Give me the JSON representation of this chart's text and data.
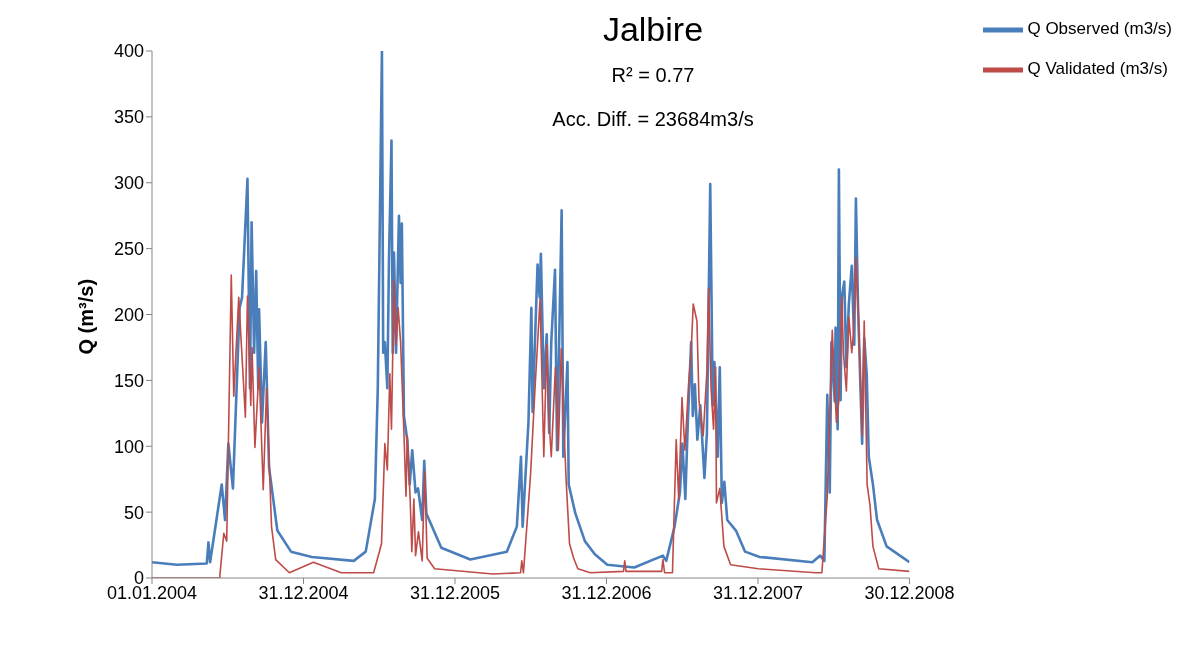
{
  "chart_data": {
    "type": "line",
    "title": "Jalbire",
    "ylabel": "Q (m³/s)",
    "annotations": [
      "R² = 0.77",
      "Acc. Diff. = 23684m3/s"
    ],
    "xlim": [
      "2004-01-01",
      "2008-12-30"
    ],
    "xticks": [
      {
        "value": "2004-01-01",
        "label": "01.01.2004"
      },
      {
        "value": "2004-12-31",
        "label": "31.12.2004"
      },
      {
        "value": "2005-12-31",
        "label": "31.12.2005"
      },
      {
        "value": "2006-12-31",
        "label": "31.12.2006"
      },
      {
        "value": "2007-12-31",
        "label": "31.12.2007"
      },
      {
        "value": "2008-12-30",
        "label": "30.12.2008"
      }
    ],
    "ylim": [
      0,
      400
    ],
    "yticks": [
      0,
      50,
      100,
      150,
      200,
      250,
      300,
      350,
      400
    ],
    "legend": "top right",
    "marker": "none",
    "line_style": "solid",
    "series": [
      {
        "name": "Q Observed (m3/s)",
        "color": "#4a7ebb",
        "x": [
          "2004-01-01",
          "2004-03-01",
          "2004-05-12",
          "2004-05-16",
          "2004-05-20",
          "2004-06-17",
          "2004-06-25",
          "2004-07-03",
          "2004-07-14",
          "2004-07-30",
          "2004-08-05",
          "2004-08-18",
          "2004-08-24",
          "2004-08-28",
          "2004-09-03",
          "2004-09-08",
          "2004-09-13",
          "2004-09-15",
          "2004-09-22",
          "2004-10-01",
          "2004-10-09",
          "2004-10-29",
          "2004-12-01",
          "2005-01-20",
          "2005-05-01",
          "2005-05-30",
          "2005-06-21",
          "2005-06-28",
          "2005-07-08",
          "2005-07-11",
          "2005-07-15",
          "2005-07-21",
          "2005-07-25",
          "2005-07-31",
          "2005-08-03",
          "2005-08-06",
          "2005-08-11",
          "2005-08-18",
          "2005-08-22",
          "2005-08-25",
          "2005-08-30",
          "2005-09-07",
          "2005-09-13",
          "2005-09-19",
          "2005-09-27",
          "2005-10-03",
          "2005-10-13",
          "2005-10-18",
          "2005-10-23",
          "2005-11-28",
          "2006-02-06",
          "2006-05-05",
          "2006-05-29",
          "2006-06-08",
          "2006-06-12",
          "2006-06-26",
          "2006-07-03",
          "2006-07-06",
          "2006-07-18",
          "2006-07-23",
          "2006-07-26",
          "2006-08-02",
          "2006-08-09",
          "2006-08-15",
          "2006-08-20",
          "2006-08-29",
          "2006-09-03",
          "2006-09-14",
          "2006-09-18",
          "2006-09-28",
          "2006-10-01",
          "2006-10-17",
          "2006-11-09",
          "2006-12-03",
          "2007-01-02",
          "2007-03-08",
          "2007-05-16",
          "2007-05-24",
          "2007-06-13",
          "2007-06-26",
          "2007-07-02",
          "2007-07-09",
          "2007-07-15",
          "2007-07-23",
          "2007-07-27",
          "2007-08-01",
          "2007-08-07",
          "2007-08-14",
          "2007-08-24",
          "2007-08-30",
          "2007-09-07",
          "2007-09-13",
          "2007-09-17",
          "2007-09-25",
          "2007-09-30",
          "2007-10-05",
          "2007-10-11",
          "2007-10-18",
          "2007-11-08",
          "2007-11-30",
          "2008-01-04",
          "2008-05-10",
          "2008-05-29",
          "2008-06-08",
          "2008-06-15",
          "2008-06-21",
          "2008-06-25",
          "2008-07-03",
          "2008-07-05",
          "2008-07-10",
          "2008-07-13",
          "2008-07-17",
          "2008-07-20",
          "2008-07-26",
          "2008-07-31",
          "2008-08-06",
          "2008-08-13",
          "2008-08-19",
          "2008-08-23",
          "2008-08-28",
          "2008-09-07",
          "2008-09-12",
          "2008-09-18",
          "2008-09-23",
          "2008-10-03",
          "2008-10-13",
          "2008-11-05",
          "2008-12-30"
        ],
        "values": [
          12,
          10,
          11,
          27,
          12,
          71,
          44,
          102,
          68,
          205,
          213,
          303,
          144,
          270,
          171,
          233,
          144,
          204,
          118,
          179,
          84,
          36,
          20,
          16,
          13,
          20,
          60,
          144,
          400,
          171,
          179,
          144,
          242,
          332,
          171,
          247,
          171,
          275,
          224,
          269,
          123,
          105,
          71,
          97,
          65,
          68,
          44,
          89,
          49,
          23,
          14,
          20,
          39,
          92,
          39,
          118,
          205,
          126,
          238,
          213,
          246,
          144,
          185,
          110,
          179,
          234,
          97,
          279,
          92,
          164,
          71,
          49,
          28,
          18,
          10,
          8,
          17,
          13,
          39,
          65,
          102,
          60,
          118,
          179,
          123,
          147,
          105,
          131,
          76,
          110,
          299,
          131,
          164,
          92,
          160,
          57,
          73,
          44,
          36,
          20,
          16,
          12,
          17,
          13,
          139,
          65,
          179,
          134,
          190,
          113,
          310,
          135,
          213,
          225,
          160,
          208,
          237,
          177,
          288,
          208,
          102,
          182,
          155,
          92,
          71,
          44,
          24,
          12
        ]
      },
      {
        "name": "Q Validated (m3/s)",
        "color": "#be4b48",
        "x": [
          "2004-01-01",
          "2004-06-12",
          "2004-06-22",
          "2004-06-29",
          "2004-07-10",
          "2004-07-16",
          "2004-07-28",
          "2004-08-13",
          "2004-08-18",
          "2004-08-26",
          "2004-08-29",
          "2004-09-05",
          "2004-09-15",
          "2004-09-25",
          "2004-10-03",
          "2004-10-15",
          "2004-10-25",
          "2004-11-27",
          "2005-01-24",
          "2005-04-01",
          "2005-06-18",
          "2005-07-07",
          "2005-07-15",
          "2005-07-21",
          "2005-07-27",
          "2005-07-31",
          "2005-08-06",
          "2005-08-11",
          "2005-08-16",
          "2005-08-22",
          "2005-08-30",
          "2005-09-04",
          "2005-09-07",
          "2005-09-14",
          "2005-09-18",
          "2005-09-23",
          "2005-09-27",
          "2005-10-04",
          "2005-10-13",
          "2005-10-19",
          "2005-10-25",
          "2005-11-12",
          "2006-04-01",
          "2006-06-07",
          "2006-06-10",
          "2006-06-14",
          "2006-07-01",
          "2006-07-11",
          "2006-07-24",
          "2006-08-02",
          "2006-08-09",
          "2006-08-14",
          "2006-08-20",
          "2006-08-30",
          "2006-09-06",
          "2006-09-13",
          "2006-09-19",
          "2006-09-25",
          "2006-10-03",
          "2006-10-13",
          "2006-10-23",
          "2006-11-22",
          "2007-02-10",
          "2007-02-13",
          "2007-02-16",
          "2007-05-13",
          "2007-05-16",
          "2007-05-20",
          "2007-06-08",
          "2007-06-10",
          "2007-06-17",
          "2007-06-23",
          "2007-07-01",
          "2007-07-08",
          "2007-07-17",
          "2007-07-23",
          "2007-07-28",
          "2007-08-06",
          "2007-08-11",
          "2007-08-21",
          "2007-08-30",
          "2007-09-03",
          "2007-09-09",
          "2007-09-15",
          "2007-09-20",
          "2007-09-22",
          "2007-09-30",
          "2007-10-10",
          "2007-10-26",
          "2008-01-01",
          "2008-05-18",
          "2008-06-02",
          "2008-06-15",
          "2008-06-27",
          "2008-07-07",
          "2008-07-13",
          "2008-07-20",
          "2008-07-24",
          "2008-07-31",
          "2008-08-06",
          "2008-08-13",
          "2008-08-17",
          "2008-08-23",
          "2008-08-29",
          "2008-09-07",
          "2008-09-12",
          "2008-09-19",
          "2008-09-26",
          "2008-10-03",
          "2008-10-17",
          "2008-12-30"
        ],
        "values": [
          0,
          0,
          34,
          28,
          230,
          138,
          213,
          122,
          214,
          131,
          175,
          99,
          160,
          67,
          144,
          39,
          14,
          4,
          12,
          4,
          4,
          26,
          102,
          82,
          155,
          113,
          226,
          177,
          205,
          179,
          110,
          62,
          108,
          60,
          20,
          60,
          17,
          35,
          13,
          81,
          15,
          7,
          3,
          4,
          13,
          4,
          78,
          139,
          212,
          92,
          177,
          123,
          92,
          160,
          97,
          174,
          118,
          73,
          26,
          15,
          7,
          4,
          5,
          13,
          5,
          5,
          14,
          4,
          4,
          26,
          105,
          60,
          137,
          97,
          148,
          171,
          208,
          195,
          134,
          108,
          157,
          220,
          144,
          113,
          160,
          57,
          68,
          24,
          10,
          7,
          4,
          4,
          62,
          188,
          118,
          135,
          213,
          171,
          142,
          198,
          171,
          185,
          243,
          198,
          108,
          195,
          71,
          55,
          24,
          7,
          5
        ]
      }
    ]
  }
}
